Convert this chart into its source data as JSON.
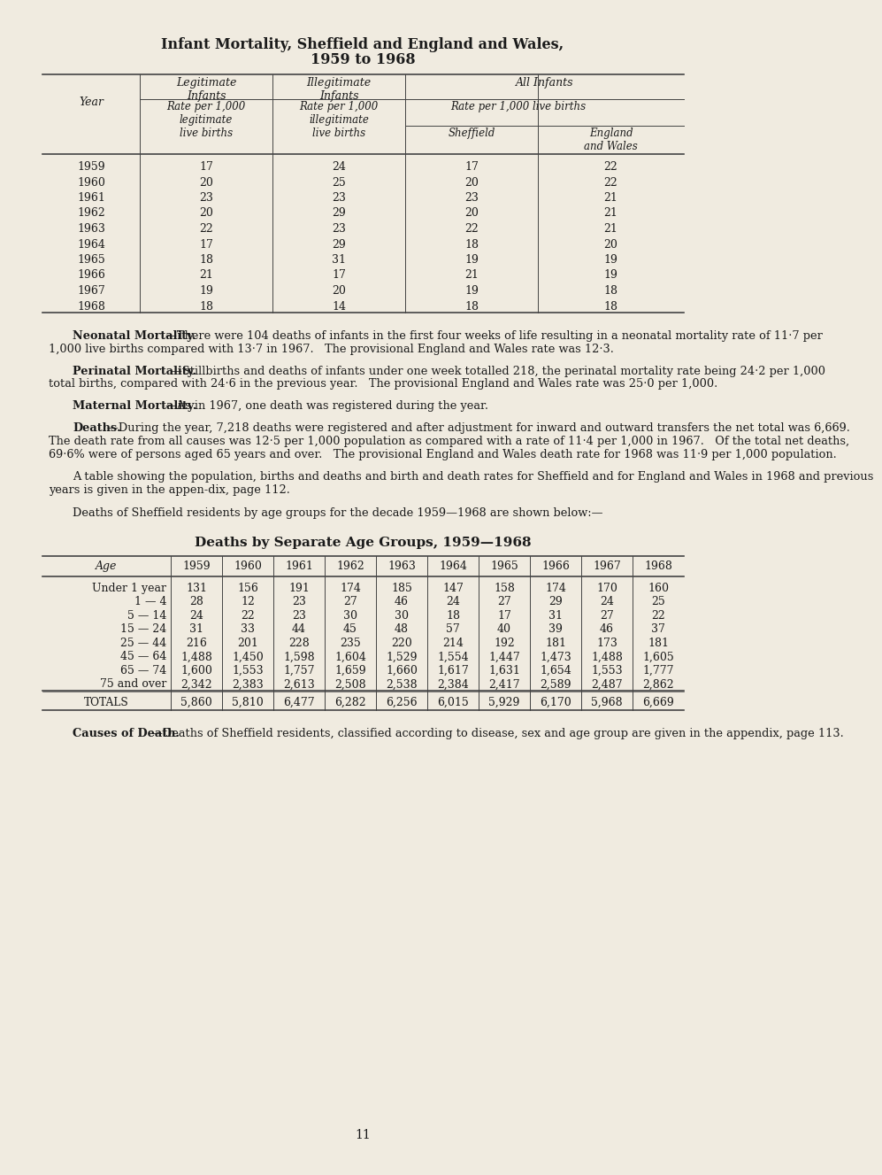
{
  "bg_color": "#f0ebe0",
  "text_color": "#1a1a1a",
  "title1": "Infant Mortality, Sheffield and England and Wales,",
  "title2": "1959 to 1968",
  "im_years": [
    "1959",
    "1960",
    "1961",
    "1962",
    "1963",
    "1964",
    "1965",
    "1966",
    "1967",
    "1968"
  ],
  "im_legit": [
    17,
    20,
    23,
    20,
    22,
    17,
    18,
    21,
    19,
    18
  ],
  "im_illegit": [
    24,
    25,
    23,
    29,
    23,
    29,
    31,
    17,
    20,
    14
  ],
  "im_sheffield": [
    17,
    20,
    23,
    20,
    22,
    18,
    19,
    21,
    19,
    18
  ],
  "im_ew": [
    22,
    22,
    21,
    21,
    21,
    20,
    19,
    19,
    18,
    18
  ],
  "neonatal_bold": "Neonatal Mortality.",
  "neonatal_rest": "—There were 104 deaths of infants in the first four weeks of life resulting in a neonatal mortality rate of 11·7 per 1,000 live births compared with 13·7 in 1967.   The provisional England and Wales rate was 12·3.",
  "perinatal_bold": "Perinatal Mortality.",
  "perinatal_rest": "—Stillbirths and deaths of infants under one week totalled 218, the perinatal mortality rate being 24·2 per 1,000 total births, compared with 24·6 in the previous year.   The provisional England and Wales rate was 25·0 per 1,000.",
  "maternal_bold": "Maternal Mortality.",
  "maternal_rest": "—As in 1967, one death was registered during the year.",
  "deaths_bold": "Deaths.",
  "deaths_rest": "—During the year, 7,218 deaths were registered and after adjustment for inward and outward transfers the net total was 6,669.   The death rate from all causes was 12·5 per 1,000 population as compared with a rate of 11·4 per 1,000 in 1967.   Of the total net deaths, 69·6% were of persons aged 65 years and over.   The provisional England and Wales death rate for 1968 was 11·9 per 1,000 population.",
  "para1": "A table showing the population, births and deaths and birth and death rates for Sheffield and for England and Wales in 1968 and previous years is given in the appen­dix, page 112.",
  "para2": "Deaths of Sheffield residents by age groups for the decade 1959—1968 are shown below:—",
  "table2_title": "Deaths by Separate Age Groups, 1959—1968",
  "age_groups": [
    "Under 1 year",
    "1 — 4",
    "5 — 14",
    "15 — 24",
    "25 — 44",
    "45 — 64",
    "65 — 74",
    "75 and over"
  ],
  "deaths_years": [
    "1959",
    "1960",
    "1961",
    "1962",
    "1963",
    "1964",
    "1965",
    "1966",
    "1967",
    "1968"
  ],
  "deaths_data": [
    [
      131,
      156,
      191,
      174,
      185,
      147,
      158,
      174,
      170,
      160
    ],
    [
      28,
      12,
      23,
      27,
      46,
      24,
      27,
      29,
      24,
      25
    ],
    [
      24,
      22,
      23,
      30,
      30,
      18,
      17,
      31,
      27,
      22
    ],
    [
      31,
      33,
      44,
      45,
      48,
      57,
      40,
      39,
      46,
      37
    ],
    [
      216,
      201,
      228,
      235,
      220,
      214,
      192,
      181,
      173,
      181
    ],
    [
      1488,
      1450,
      1598,
      1604,
      1529,
      1554,
      1447,
      1473,
      1488,
      1605
    ],
    [
      1600,
      1553,
      1757,
      1659,
      1660,
      1617,
      1631,
      1654,
      1553,
      1777
    ],
    [
      2342,
      2383,
      2613,
      2508,
      2538,
      2384,
      2417,
      2589,
      2487,
      2862
    ]
  ],
  "totals": [
    5860,
    5810,
    6477,
    6282,
    6256,
    6015,
    5929,
    6170,
    5968,
    6669
  ],
  "causes_bold": "Causes of Death.",
  "causes_rest": "—Deaths of Sheffield residents, classified according to disease, sex and age group are given in the appendix, page 113.",
  "page_number": "11"
}
